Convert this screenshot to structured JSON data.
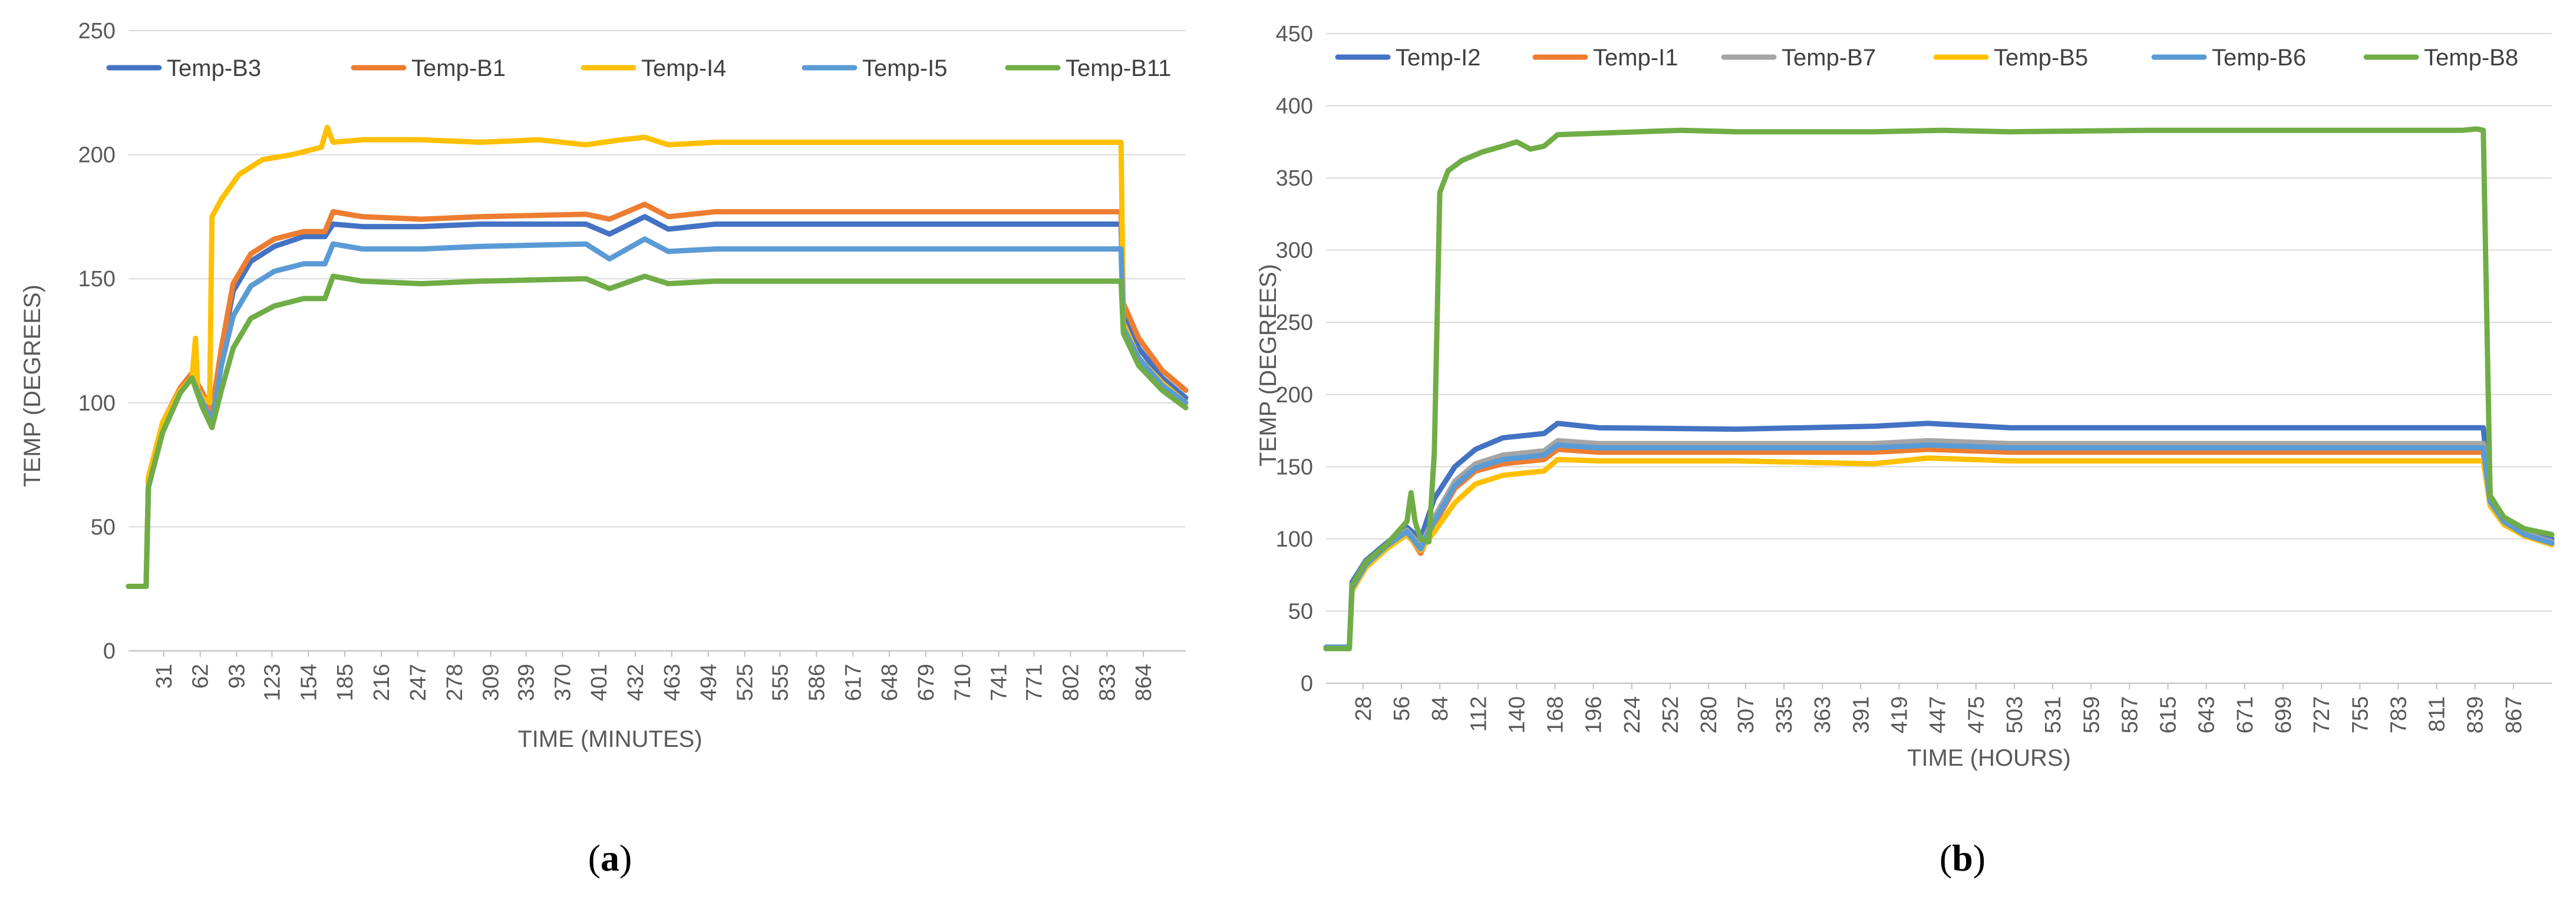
{
  "chart_data": [
    {
      "type": "line",
      "caption": "a",
      "xlabel": "TIME (MINUTES)",
      "ylabel": "TEMP (DEGREES)",
      "ylim": [
        0,
        250
      ],
      "yticks": [
        0,
        50,
        100,
        150,
        200,
        250
      ],
      "xlim": [
        1,
        900
      ],
      "xticks": [
        31,
        62,
        93,
        123,
        154,
        185,
        216,
        247,
        278,
        309,
        339,
        370,
        401,
        432,
        463,
        494,
        525,
        555,
        586,
        617,
        648,
        679,
        710,
        741,
        771,
        802,
        833,
        864
      ],
      "grid": true,
      "legend": "top",
      "series": [
        {
          "name": "Temp-B3",
          "color": "#4472C4",
          "x": [
            1,
            16,
            18,
            30,
            45,
            55,
            64,
            72,
            80,
            90,
            105,
            125,
            150,
            168,
            175,
            200,
            250,
            300,
            390,
            410,
            440,
            460,
            500,
            600,
            700,
            820,
            845,
            847,
            860,
            880,
            900
          ],
          "y": [
            26,
            26,
            68,
            90,
            105,
            111,
            103,
            95,
            120,
            145,
            157,
            163,
            167,
            167,
            172,
            171,
            171,
            172,
            172,
            168,
            175,
            170,
            172,
            172,
            172,
            172,
            172,
            135,
            122,
            110,
            102
          ]
        },
        {
          "name": "Temp-B1",
          "color": "#ED7D31",
          "x": [
            1,
            16,
            18,
            30,
            45,
            55,
            64,
            72,
            80,
            90,
            105,
            125,
            150,
            168,
            175,
            200,
            250,
            300,
            390,
            410,
            440,
            460,
            500,
            600,
            700,
            820,
            845,
            847,
            860,
            880,
            900
          ],
          "y": [
            26,
            26,
            70,
            92,
            106,
            112,
            104,
            97,
            122,
            148,
            160,
            166,
            169,
            169,
            177,
            175,
            174,
            175,
            176,
            174,
            180,
            175,
            177,
            177,
            177,
            177,
            177,
            140,
            126,
            113,
            105
          ]
        },
        {
          "name": "Temp-I4",
          "color": "#FFC000",
          "x": [
            1,
            16,
            18,
            30,
            45,
            55,
            58,
            60,
            64,
            70,
            72,
            80,
            95,
            115,
            140,
            165,
            170,
            175,
            200,
            250,
            300,
            350,
            390,
            420,
            440,
            460,
            500,
            600,
            700,
            840,
            845,
            847,
            860,
            880,
            900
          ],
          "y": [
            26,
            26,
            70,
            92,
            105,
            110,
            126,
            105,
            102,
            100,
            175,
            182,
            192,
            198,
            200,
            203,
            211,
            205,
            206,
            206,
            205,
            206,
            204,
            206,
            207,
            204,
            205,
            205,
            205,
            205,
            205,
            132,
            118,
            108,
            100
          ]
        },
        {
          "name": "Temp-I5",
          "color": "#5B9BD5",
          "x": [
            1,
            16,
            18,
            30,
            45,
            55,
            64,
            72,
            80,
            90,
            105,
            125,
            150,
            168,
            175,
            200,
            250,
            300,
            390,
            410,
            440,
            460,
            500,
            600,
            700,
            820,
            845,
            847,
            860,
            880,
            900
          ],
          "y": [
            26,
            26,
            66,
            88,
            104,
            110,
            100,
            92,
            115,
            135,
            147,
            153,
            156,
            156,
            164,
            162,
            162,
            163,
            164,
            158,
            166,
            161,
            162,
            162,
            162,
            162,
            162,
            130,
            118,
            107,
            100
          ]
        },
        {
          "name": "Temp-B11",
          "color": "#70AD47",
          "x": [
            1,
            16,
            18,
            30,
            45,
            55,
            64,
            72,
            80,
            90,
            105,
            125,
            150,
            168,
            175,
            200,
            250,
            300,
            390,
            410,
            440,
            460,
            500,
            600,
            700,
            820,
            845,
            847,
            860,
            880,
            900
          ],
          "y": [
            26,
            26,
            66,
            88,
            104,
            110,
            98,
            90,
            105,
            122,
            134,
            139,
            142,
            142,
            151,
            149,
            148,
            149,
            150,
            146,
            151,
            148,
            149,
            149,
            149,
            149,
            149,
            128,
            115,
            105,
            98
          ]
        }
      ]
    },
    {
      "type": "line",
      "caption": "b",
      "xlabel": "TIME (HOURS)",
      "ylabel": "TEMP (DEGREES)",
      "ylim": [
        0,
        450
      ],
      "yticks": [
        0,
        50,
        100,
        150,
        200,
        250,
        300,
        350,
        400,
        450
      ],
      "xlim": [
        1,
        895
      ],
      "xticks": [
        28,
        56,
        84,
        112,
        140,
        168,
        196,
        224,
        252,
        280,
        307,
        335,
        363,
        391,
        419,
        447,
        475,
        503,
        531,
        559,
        587,
        615,
        643,
        671,
        699,
        727,
        755,
        783,
        811,
        839,
        867
      ],
      "grid": true,
      "legend": "top",
      "series": [
        {
          "name": "Temp-I2",
          "color": "#4472C4",
          "x": [
            1,
            18,
            20,
            30,
            45,
            60,
            70,
            80,
            95,
            110,
            130,
            160,
            170,
            200,
            300,
            400,
            440,
            500,
            600,
            700,
            840,
            845,
            850,
            860,
            875,
            895
          ],
          "y": [
            25,
            25,
            70,
            85,
            97,
            108,
            100,
            128,
            150,
            162,
            170,
            173,
            180,
            177,
            176,
            178,
            180,
            177,
            177,
            177,
            177,
            177,
            130,
            115,
            107,
            100
          ]
        },
        {
          "name": "Temp-I1",
          "color": "#ED7D31",
          "x": [
            1,
            18,
            20,
            30,
            45,
            60,
            70,
            80,
            95,
            110,
            130,
            160,
            170,
            200,
            300,
            400,
            440,
            500,
            600,
            700,
            840,
            845,
            850,
            860,
            875,
            895
          ],
          "y": [
            25,
            25,
            65,
            82,
            95,
            105,
            90,
            110,
            135,
            147,
            152,
            155,
            162,
            160,
            160,
            160,
            162,
            160,
            160,
            160,
            160,
            160,
            125,
            112,
            103,
            96
          ]
        },
        {
          "name": "Temp-B7",
          "color": "#A5A5A5",
          "x": [
            1,
            18,
            20,
            30,
            45,
            60,
            70,
            80,
            95,
            110,
            130,
            160,
            170,
            200,
            300,
            400,
            440,
            500,
            600,
            700,
            840,
            845,
            850,
            860,
            875,
            895
          ],
          "y": [
            25,
            25,
            67,
            83,
            96,
            106,
            95,
            115,
            140,
            152,
            158,
            161,
            168,
            166,
            166,
            166,
            168,
            166,
            166,
            166,
            166,
            166,
            127,
            113,
            104,
            98
          ]
        },
        {
          "name": "Temp-B5",
          "color": "#FFC000",
          "x": [
            1,
            18,
            20,
            30,
            45,
            60,
            70,
            80,
            95,
            110,
            130,
            160,
            170,
            200,
            300,
            400,
            440,
            500,
            600,
            700,
            840,
            845,
            850,
            860,
            875,
            895
          ],
          "y": [
            25,
            25,
            64,
            80,
            93,
            103,
            92,
            105,
            125,
            138,
            144,
            147,
            155,
            154,
            154,
            152,
            156,
            154,
            154,
            154,
            154,
            154,
            123,
            110,
            102,
            96
          ]
        },
        {
          "name": "Temp-B6",
          "color": "#5B9BD5",
          "x": [
            1,
            18,
            20,
            30,
            45,
            60,
            70,
            80,
            95,
            110,
            130,
            160,
            170,
            200,
            300,
            400,
            440,
            500,
            600,
            700,
            840,
            845,
            850,
            860,
            875,
            895
          ],
          "y": [
            25,
            25,
            66,
            82,
            95,
            105,
            93,
            112,
            137,
            149,
            155,
            158,
            165,
            163,
            163,
            163,
            165,
            163,
            163,
            163,
            163,
            163,
            126,
            112,
            103,
            97
          ]
        },
        {
          "name": "Temp-B8",
          "color": "#70AD47",
          "x": [
            1,
            18,
            20,
            30,
            45,
            60,
            63,
            66,
            70,
            76,
            80,
            84,
            90,
            100,
            115,
            130,
            140,
            150,
            160,
            170,
            200,
            260,
            300,
            400,
            450,
            500,
            600,
            700,
            830,
            840,
            845,
            850,
            860,
            875,
            895
          ],
          "y": [
            24,
            24,
            68,
            84,
            96,
            112,
            132,
            112,
            100,
            98,
            160,
            340,
            355,
            362,
            368,
            372,
            375,
            370,
            372,
            380,
            381,
            383,
            382,
            382,
            383,
            382,
            383,
            383,
            383,
            384,
            383,
            130,
            115,
            107,
            103
          ]
        }
      ]
    }
  ]
}
